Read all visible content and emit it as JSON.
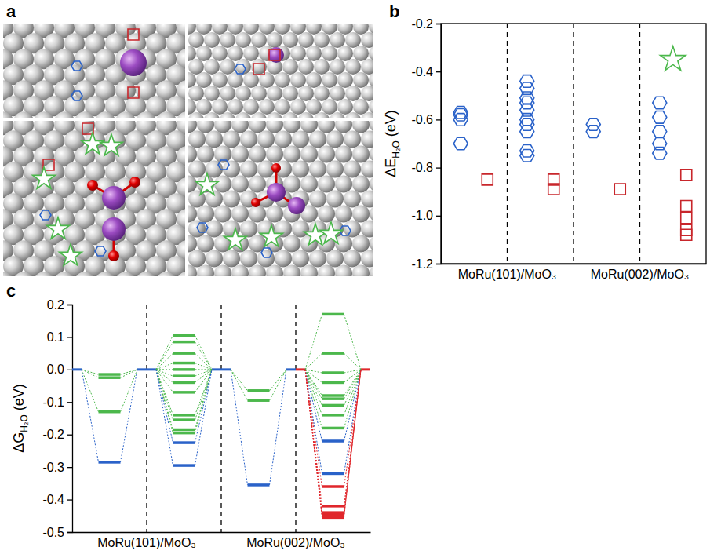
{
  "panel_a": {
    "panel_label": "a"
  },
  "chart_data": [
    {
      "type": "scatter",
      "panel_label": "b",
      "y_label": {
        "main": "ΔE",
        "sub": "H₂O",
        "unit": " (eV)"
      },
      "categories": [
        "MoRu(101)/MoO₃",
        null,
        "MoRu(002)/MoO₃",
        null
      ],
      "ylim": [
        -1.2,
        -0.2
      ],
      "yticks": [
        -1.2,
        {
          "value": -1,
          "label": "-1.0"
        },
        -0.8,
        -0.6,
        -0.4,
        -0.2
      ],
      "series": [
        {
          "marker": "hexagon",
          "color": "#2a62c9",
          "values": [
            [
              -0.57,
              -0.58,
              -0.6,
              -0.7
            ],
            [
              -0.44,
              -0.47,
              -0.51,
              -0.53,
              -0.56,
              -0.6,
              -0.62,
              -0.65,
              -0.73,
              -0.75
            ],
            [
              -0.62,
              -0.65
            ],
            [
              -0.53,
              -0.59,
              -0.65,
              -0.7,
              -0.74
            ]
          ]
        },
        {
          "marker": "square",
          "color": "#c8262b",
          "values": [
            [
              -0.85
            ],
            [
              -0.85,
              -0.89
            ],
            [
              -0.89
            ],
            [
              -0.83,
              -0.96,
              -1.01,
              -1.06,
              -1.08
            ]
          ]
        },
        {
          "marker": "star",
          "color": "#4cb84c",
          "values": [
            [],
            [],
            [],
            [
              -0.35
            ]
          ]
        }
      ]
    },
    {
      "type": "level",
      "panel_label": "c",
      "y_label": {
        "main": "ΔG",
        "sub": "H₂O",
        "unit": " (eV)"
      },
      "categories": [
        "MoRu(101)/MoO₃",
        null,
        "MoRu(002)/MoO₃",
        null
      ],
      "ylim": [
        -0.5,
        0.2
      ],
      "yticks": [
        -0.5,
        -0.4,
        -0.3,
        -0.2,
        -0.1,
        {
          "value": 0,
          "label": "0.0"
        },
        0.1,
        0.2
      ],
      "reference_level": 0,
      "series": [
        {
          "color": "#4cb84c",
          "values": [
            [
              -0.015,
              -0.025,
              -0.13
            ],
            [
              0.105,
              0.085,
              0.05,
              0.02,
              0.0,
              -0.02,
              -0.04,
              -0.07,
              -0.14,
              -0.155,
              -0.185,
              -0.195
            ],
            [
              -0.065,
              -0.095
            ],
            [
              0.17,
              0.05,
              -0.01,
              -0.04,
              -0.08,
              -0.09,
              -0.11,
              -0.14,
              -0.18
            ]
          ]
        },
        {
          "color": "#2a62c9",
          "values": [
            [
              -0.285
            ],
            [
              -0.225,
              -0.295
            ],
            [
              -0.355
            ],
            [
              -0.22,
              -0.32
            ]
          ]
        },
        {
          "color": "#e0262b",
          "values": [
            [],
            [],
            [],
            [
              -0.36,
              -0.42,
              -0.44,
              -0.445,
              -0.45,
              -0.455
            ]
          ]
        }
      ]
    }
  ]
}
